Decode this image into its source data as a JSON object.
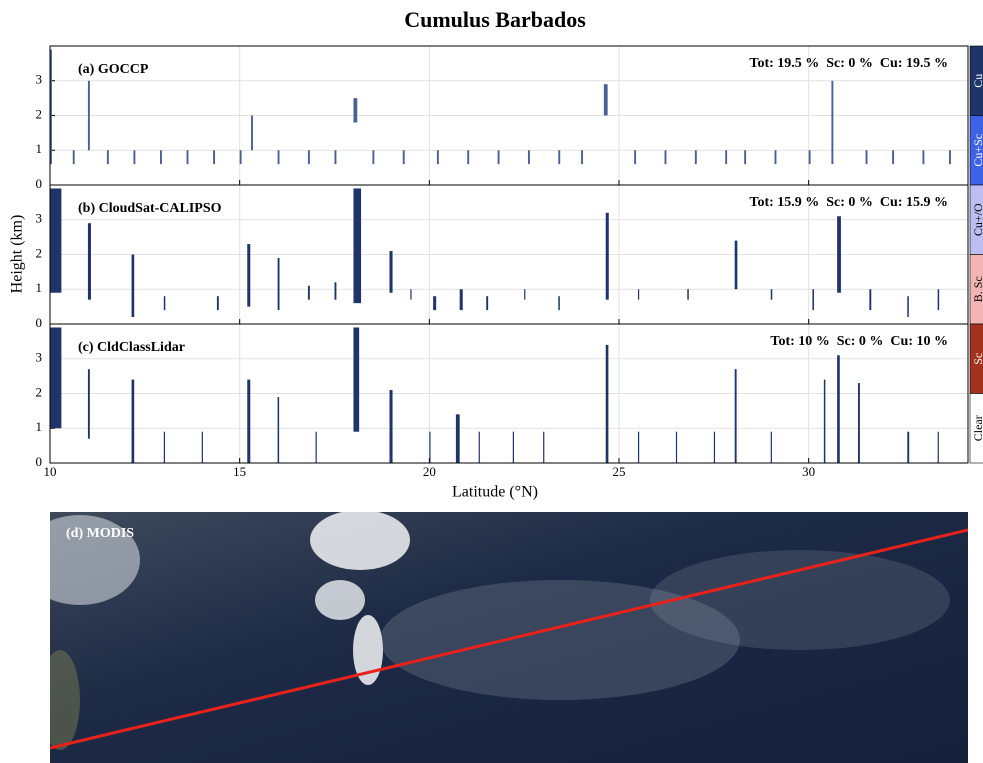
{
  "title": "Cumulus Barbados",
  "y_label": "Height (km)",
  "x_label": "Latitude (°N)",
  "modis_label": "(d) MODIS",
  "legend": {
    "labels": [
      "Cu",
      "Cu+Sc",
      "Cu+/O",
      "B. Sc",
      "Sc",
      "Clear"
    ],
    "colors": [
      "#1f3468",
      "#3d62e6",
      "#bdbdf2",
      "#f2b4b4",
      "#a2341f",
      "#ffffff"
    ]
  },
  "chart_data": [
    {
      "type": "range-bar",
      "label": "(a) GOCCP",
      "stats": "Tot: 19.5 %  Sc: 0 %  Cu: 19.5 %",
      "color": "#4a5f96",
      "xlim": [
        10,
        34.2
      ],
      "ylim": [
        0,
        4
      ],
      "yticks": [
        0,
        1,
        2,
        3
      ],
      "x": [
        10.0,
        10.6,
        11.0,
        11.5,
        12.2,
        12.9,
        13.6,
        14.3,
        15.0,
        15.3,
        16.0,
        16.8,
        17.5,
        18.0,
        18.5,
        19.3,
        20.2,
        21.0,
        21.8,
        22.6,
        23.4,
        24.0,
        24.6,
        25.4,
        26.2,
        27.0,
        27.8,
        28.3,
        29.1,
        30.0,
        30.6,
        31.5,
        32.2,
        33.0,
        33.7
      ],
      "x_end": [
        10.05,
        10.65,
        11.05,
        11.55,
        12.25,
        12.95,
        13.65,
        14.35,
        15.05,
        15.35,
        16.05,
        16.85,
        17.55,
        18.1,
        18.55,
        19.35,
        20.25,
        21.05,
        21.85,
        22.65,
        23.45,
        24.05,
        24.7,
        25.45,
        26.25,
        27.05,
        27.85,
        28.35,
        29.15,
        30.05,
        30.65,
        31.55,
        32.25,
        33.05,
        33.75
      ],
      "base": [
        0.6,
        0.6,
        1.0,
        0.6,
        0.6,
        0.6,
        0.6,
        0.6,
        0.6,
        1.0,
        0.6,
        0.6,
        0.6,
        1.8,
        0.6,
        0.6,
        0.6,
        0.6,
        0.6,
        0.6,
        0.6,
        0.6,
        2.0,
        0.6,
        0.6,
        0.6,
        0.6,
        0.6,
        0.6,
        0.6,
        0.6,
        0.6,
        0.6,
        0.6,
        0.6
      ],
      "top": [
        3.9,
        1.0,
        3.0,
        1.0,
        1.0,
        1.0,
        1.0,
        1.0,
        1.0,
        2.0,
        1.0,
        1.0,
        1.0,
        2.5,
        1.0,
        1.0,
        1.0,
        1.0,
        1.0,
        1.0,
        1.0,
        1.0,
        2.9,
        1.0,
        1.0,
        1.0,
        1.0,
        1.0,
        1.0,
        1.0,
        3.0,
        1.0,
        1.0,
        1.0,
        1.0
      ]
    },
    {
      "type": "range-bar",
      "label": "(b) CloudSat-CALIPSO",
      "stats": "Tot: 15.9 %  Sc: 0 %  Cu: 15.9 %",
      "color": "#1f3468",
      "xlim": [
        10,
        34.2
      ],
      "ylim": [
        0,
        4
      ],
      "yticks": [
        0,
        1,
        2,
        3
      ],
      "x": [
        10.0,
        11.0,
        12.15,
        13.0,
        14.4,
        15.2,
        16.0,
        16.8,
        17.5,
        18.0,
        18.95,
        19.5,
        20.1,
        20.8,
        21.5,
        22.5,
        23.4,
        24.65,
        25.5,
        26.8,
        28.05,
        29.0,
        30.1,
        30.75,
        31.6,
        32.6,
        33.4
      ],
      "x_end": [
        10.3,
        11.08,
        12.22,
        13.04,
        14.45,
        15.28,
        16.05,
        16.85,
        17.55,
        18.2,
        19.03,
        19.53,
        20.18,
        20.88,
        21.55,
        22.53,
        23.44,
        24.73,
        25.53,
        26.84,
        28.12,
        29.04,
        30.14,
        30.85,
        31.65,
        32.64,
        33.44
      ],
      "base": [
        0.9,
        0.7,
        0.2,
        0.4,
        0.4,
        0.5,
        0.4,
        0.7,
        0.7,
        0.6,
        0.9,
        0.7,
        0.4,
        0.4,
        0.4,
        0.7,
        0.4,
        0.7,
        0.7,
        0.7,
        1.0,
        0.7,
        0.4,
        0.9,
        0.4,
        0.2,
        0.4
      ],
      "top": [
        3.9,
        2.9,
        2.0,
        0.8,
        0.8,
        2.3,
        1.9,
        1.1,
        1.2,
        3.9,
        2.1,
        1.0,
        0.8,
        1.0,
        0.8,
        1.0,
        0.8,
        3.2,
        1.0,
        1.0,
        2.4,
        1.0,
        1.0,
        3.1,
        1.0,
        0.8,
        1.0
      ]
    },
    {
      "type": "range-bar",
      "label": "(c) CldClassLidar",
      "stats": "Tot: 10 %  Sc: 0 %  Cu: 10 %",
      "color": "#1f3468",
      "xlim": [
        10,
        34.2
      ],
      "ylim": [
        0,
        4
      ],
      "yticks": [
        0,
        1,
        2,
        3
      ],
      "xticks": [
        10,
        15,
        20,
        25,
        30
      ],
      "x": [
        10.0,
        11.0,
        12.15,
        13.0,
        14.0,
        15.2,
        16.0,
        17.0,
        18.0,
        18.95,
        20.0,
        20.7,
        21.3,
        22.2,
        23.0,
        24.65,
        25.5,
        26.5,
        27.5,
        28.05,
        29.0,
        30.4,
        30.75,
        31.3,
        32.6,
        33.4
      ],
      "x_end": [
        10.3,
        11.05,
        12.22,
        13.03,
        14.03,
        15.28,
        16.04,
        17.03,
        18.15,
        19.03,
        20.03,
        20.8,
        21.33,
        22.23,
        23.03,
        24.72,
        25.53,
        26.53,
        27.53,
        28.1,
        29.03,
        30.44,
        30.82,
        31.35,
        32.65,
        33.43
      ],
      "base": [
        1.0,
        0.7,
        0.0,
        0.0,
        0.0,
        0.0,
        0.0,
        0.0,
        0.9,
        0.0,
        0.0,
        0.0,
        0.0,
        0.0,
        0.0,
        0.0,
        0.0,
        0.0,
        0.0,
        0.0,
        0.0,
        0.0,
        0.0,
        0.0,
        0.0,
        0.0
      ],
      "top": [
        3.9,
        2.7,
        2.4,
        0.9,
        0.9,
        2.4,
        1.9,
        0.9,
        3.9,
        2.1,
        0.9,
        1.4,
        0.9,
        0.9,
        0.9,
        3.4,
        0.9,
        0.9,
        0.9,
        2.7,
        0.9,
        2.4,
        3.1,
        2.3,
        0.9,
        0.9
      ]
    }
  ]
}
